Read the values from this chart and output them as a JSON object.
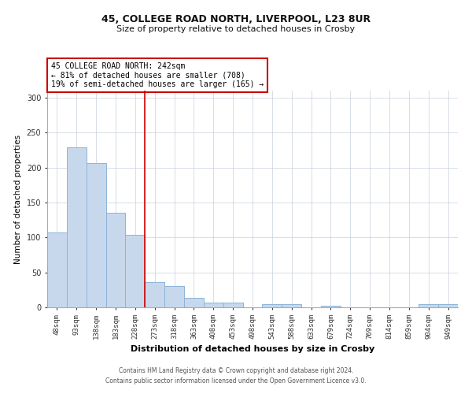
{
  "title_line1": "45, COLLEGE ROAD NORTH, LIVERPOOL, L23 8UR",
  "title_line2": "Size of property relative to detached houses in Crosby",
  "xlabel": "Distribution of detached houses by size in Crosby",
  "ylabel": "Number of detached properties",
  "categories": [
    "48sqm",
    "93sqm",
    "138sqm",
    "183sqm",
    "228sqm",
    "273sqm",
    "318sqm",
    "363sqm",
    "408sqm",
    "453sqm",
    "498sqm",
    "543sqm",
    "588sqm",
    "633sqm",
    "679sqm",
    "724sqm",
    "769sqm",
    "814sqm",
    "859sqm",
    "904sqm",
    "949sqm"
  ],
  "values": [
    107,
    229,
    206,
    135,
    104,
    36,
    31,
    13,
    7,
    7,
    0,
    4,
    4,
    0,
    2,
    0,
    0,
    0,
    0,
    5,
    5
  ],
  "bar_color": "#c8d8ec",
  "bar_edge_color": "#8ab4d8",
  "red_line_x": 4.5,
  "annotation_text": "45 COLLEGE ROAD NORTH: 242sqm\n← 81% of detached houses are smaller (708)\n19% of semi-detached houses are larger (165) →",
  "annotation_box_color": "white",
  "annotation_box_edge_color": "#cc0000",
  "red_line_color": "#cc0000",
  "footer_line1": "Contains HM Land Registry data © Crown copyright and database right 2024.",
  "footer_line2": "Contains public sector information licensed under the Open Government Licence v3.0.",
  "ylim": [
    0,
    310
  ],
  "yticks": [
    0,
    50,
    100,
    150,
    200,
    250,
    300
  ],
  "background_color": "white",
  "grid_color": "#c8d0dc",
  "title1_fontsize": 9,
  "title2_fontsize": 8,
  "xlabel_fontsize": 8,
  "ylabel_fontsize": 7.5,
  "tick_fontsize": 6.5,
  "annotation_fontsize": 7,
  "footer_fontsize": 5.5
}
